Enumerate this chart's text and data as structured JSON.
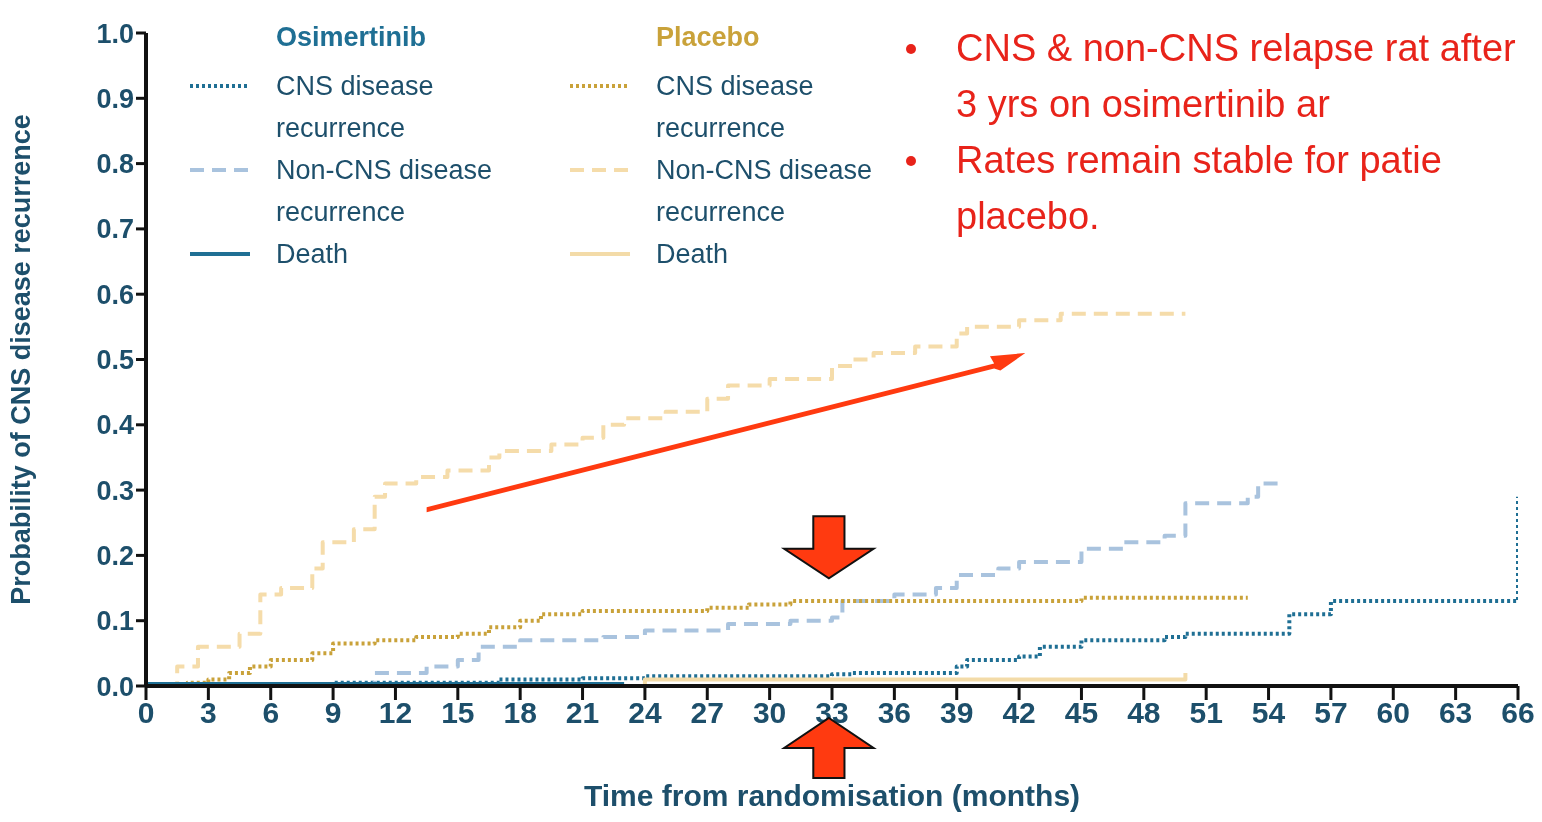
{
  "chart_data": {
    "type": "step",
    "xlabel": "Time from randomisation (months)",
    "ylabel": "Probability of CNS disease recurrence",
    "xlim": [
      0,
      66
    ],
    "xticks": [
      0,
      3,
      6,
      9,
      12,
      15,
      18,
      21,
      24,
      27,
      30,
      33,
      36,
      39,
      42,
      45,
      48,
      51,
      54,
      57,
      60,
      63,
      66
    ],
    "ylim": [
      0,
      1
    ],
    "yticks": [
      {
        "value": 0,
        "label": "0.0"
      },
      0.1,
      0.2,
      0.3,
      0.4,
      0.5,
      0.6,
      0.7,
      0.8,
      0.9,
      {
        "value": 1,
        "label": "1.0"
      }
    ],
    "grid": false,
    "legend": "top left",
    "marker": "none",
    "annotations": [
      "Osimertinib",
      "Placebo",
      "CNS & non-CNS relapse rat after 3 yrs on osimertinib ar",
      "Rates remain stable for patie placebo."
    ],
    "series": [
      {
        "name": "CNS disease recurrence",
        "color": "#1f6f94",
        "line_style": "dotted",
        "x": [
          0,
          9,
          17,
          21,
          24,
          33,
          34,
          39,
          39.5,
          42,
          43,
          45,
          49,
          50,
          55,
          57,
          66,
          66
        ],
        "values": [
          0,
          0.005,
          0.01,
          0.012,
          0.015,
          0.018,
          0.02,
          0.03,
          0.04,
          0.045,
          0.06,
          0.07,
          0.075,
          0.08,
          0.11,
          0.13,
          0.13,
          0.29
        ]
      },
      {
        "name": "Non-CNS disease recurrence",
        "color": "#a9c3de",
        "line_style": "dashed",
        "x": [
          0,
          11,
          13.5,
          15,
          16,
          18,
          22,
          24,
          28,
          31,
          33,
          33.5,
          36,
          38,
          39,
          41,
          42,
          45,
          47,
          49,
          50,
          53,
          53.5,
          54.5
        ],
        "values": [
          0,
          0.02,
          0.03,
          0.04,
          0.06,
          0.07,
          0.075,
          0.085,
          0.095,
          0.1,
          0.105,
          0.13,
          0.14,
          0.15,
          0.17,
          0.18,
          0.19,
          0.21,
          0.22,
          0.23,
          0.28,
          0.29,
          0.31,
          0.31
        ]
      },
      {
        "name": "Death",
        "color": "#1f6f94",
        "line_style": "solid",
        "x": [
          0,
          23
        ],
        "values": [
          0.003,
          0.003
        ]
      },
      {
        "name": "CNS disease recurrence",
        "color": "#c9a23a",
        "line_style": "dotted",
        "x": [
          0,
          2,
          3,
          4,
          5,
          6,
          8,
          9,
          11,
          13,
          15,
          16.5,
          18,
          19,
          21,
          27,
          29,
          31,
          45,
          53
        ],
        "values": [
          0,
          0.005,
          0.01,
          0.02,
          0.03,
          0.04,
          0.05,
          0.065,
          0.07,
          0.075,
          0.08,
          0.09,
          0.1,
          0.11,
          0.115,
          0.12,
          0.125,
          0.13,
          0.135,
          0.135
        ]
      },
      {
        "name": "Non-CNS disease recurrence",
        "color": "#f5dcaa",
        "line_style": "dashed",
        "x": [
          0,
          1.5,
          2.5,
          4.5,
          5.5,
          6.5,
          8,
          8.5,
          10,
          11,
          11.5,
          13,
          14.5,
          16.5,
          17,
          19.5,
          21,
          22,
          23,
          25,
          27,
          28,
          30,
          33,
          34,
          35,
          37,
          39,
          39.5,
          42,
          44,
          50
        ],
        "values": [
          0,
          0.03,
          0.06,
          0.08,
          0.14,
          0.15,
          0.18,
          0.22,
          0.24,
          0.29,
          0.31,
          0.32,
          0.33,
          0.35,
          0.36,
          0.37,
          0.38,
          0.4,
          0.41,
          0.42,
          0.44,
          0.46,
          0.47,
          0.49,
          0.5,
          0.51,
          0.52,
          0.54,
          0.55,
          0.56,
          0.57,
          0.57
        ]
      },
      {
        "name": "Death",
        "color": "#f3dba8",
        "line_style": "solid",
        "x": [
          0,
          24,
          50,
          50
        ],
        "values": [
          0,
          0.01,
          0.01,
          0.02
        ]
      }
    ]
  }
}
